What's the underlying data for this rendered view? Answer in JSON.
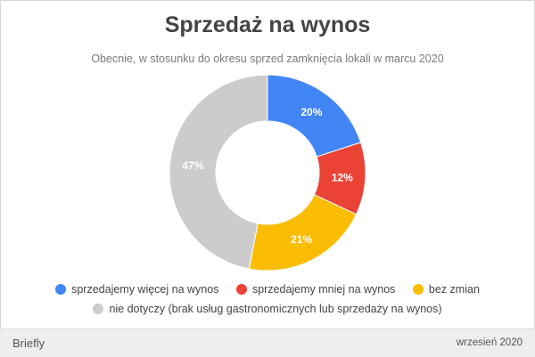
{
  "chart_data": {
    "type": "pie",
    "donut": true,
    "title": "Sprzedaż na wynos",
    "subtitle": "Obecnie, w stosunku do okresu sprzed zamknięcia lokali w marcu 2020",
    "categories": [
      "sprzedajemy więcej na wynos",
      "sprzedajemy mniej na wynos",
      "bez zmian",
      "nie dotyczy (brak usług gastronomicznych lub sprzedaży na wynos)"
    ],
    "values": [
      20,
      12,
      21,
      47
    ],
    "value_labels": [
      "20%",
      "12%",
      "21%",
      "47%"
    ],
    "colors": [
      "#4285f4",
      "#ea4335",
      "#fbbc04",
      "#cccccc"
    ],
    "legend_position": "bottom"
  },
  "footer": {
    "brand": "Briefly",
    "date": "wrzesień 2020"
  }
}
